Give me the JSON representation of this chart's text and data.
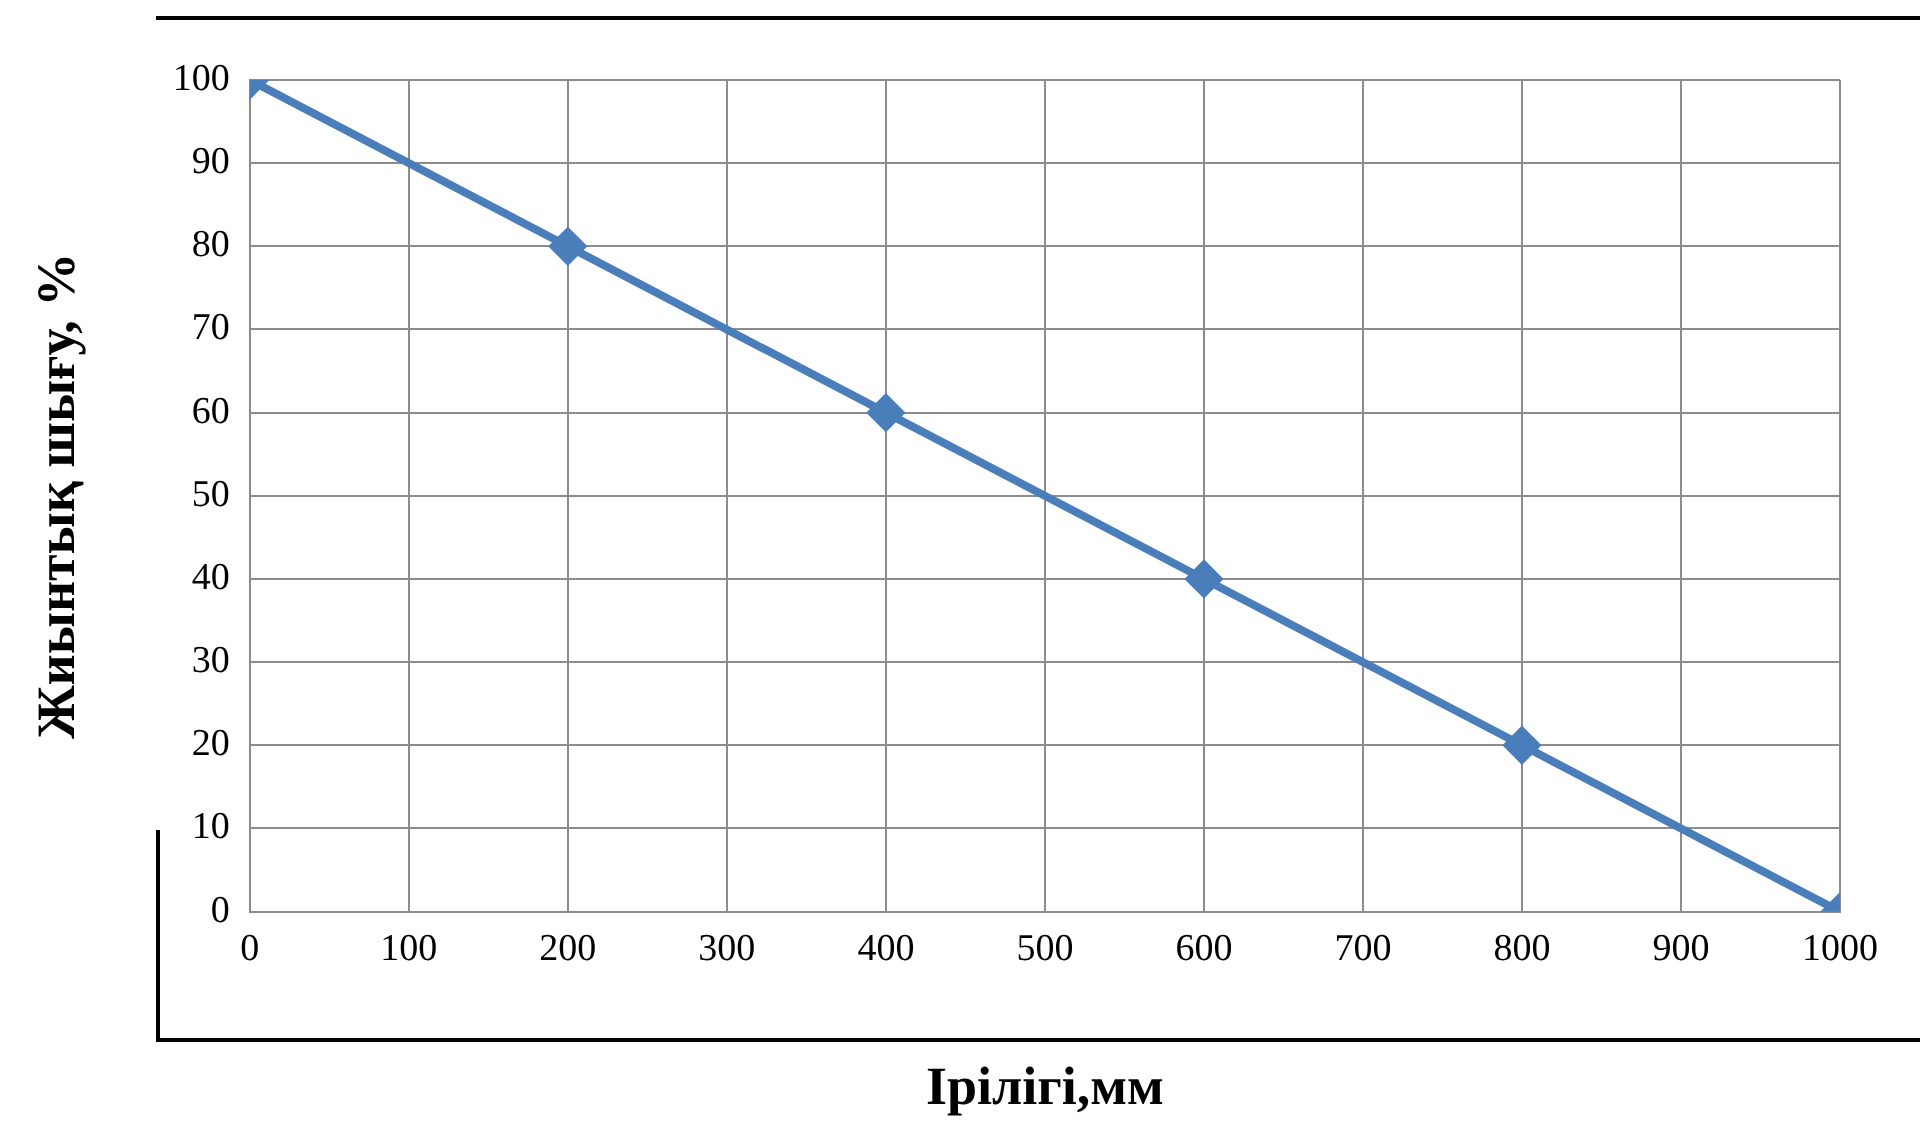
{
  "chart_data": {
    "type": "line",
    "xlabel": "Ірілігі,мм",
    "ylabel": "Жиынтық шығу, %",
    "x": [
      0,
      200,
      400,
      600,
      800,
      1000
    ],
    "series": [
      {
        "color": "#4a7ebb",
        "values": [
          100,
          80,
          60,
          40,
          20,
          0
        ]
      }
    ],
    "xlim": [
      0,
      1000
    ],
    "xticks": [
      0,
      100,
      200,
      300,
      400,
      500,
      600,
      700,
      800,
      900,
      1000
    ],
    "ylim": [
      0,
      100
    ],
    "yticks": [
      0,
      10,
      20,
      30,
      40,
      50,
      60,
      70,
      80,
      90,
      100
    ],
    "grid": true,
    "legend": false,
    "marker": "diamond",
    "line_style": "solid"
  }
}
